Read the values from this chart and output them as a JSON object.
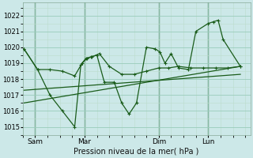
{
  "xlabel": "Pression niveau de la mer( hPa )",
  "background_color": "#cce8e8",
  "grid_color_major": "#99ccbb",
  "grid_color_minor": "#bbddcc",
  "line_color": "#1a5c1a",
  "ylim": [
    1014.5,
    1022.8
  ],
  "yticks": [
    1015,
    1016,
    1017,
    1018,
    1019,
    1020,
    1021,
    1022
  ],
  "x_tick_labels": [
    "Sam",
    "Mar",
    "Dim",
    "Lun"
  ],
  "x_tick_positions": [
    0.5,
    2.5,
    5.5,
    7.5
  ],
  "x_vlines": [
    0.5,
    2.5,
    5.5,
    7.5
  ],
  "xlim": [
    0,
    9.2
  ],
  "line1_x": [
    0.05,
    0.6,
    1.1,
    1.6,
    2.1,
    2.4,
    2.6,
    2.8,
    3.1,
    3.5,
    4.0,
    4.5,
    5.0,
    5.5,
    5.9,
    6.3,
    6.8,
    7.3,
    7.8,
    8.3,
    8.8
  ],
  "line1_y": [
    1019.9,
    1018.6,
    1018.6,
    1018.5,
    1018.2,
    1019.0,
    1019.3,
    1019.4,
    1019.6,
    1018.8,
    1018.3,
    1018.3,
    1018.5,
    1018.7,
    1018.7,
    1018.8,
    1018.7,
    1018.7,
    1018.7,
    1018.7,
    1018.8
  ],
  "line2_x": [
    0.05,
    0.6,
    1.1,
    1.6,
    2.1,
    2.35,
    2.55,
    2.75,
    3.0,
    3.3,
    3.7,
    4.0,
    4.3,
    4.6,
    5.0,
    5.35,
    5.55,
    5.75,
    6.0,
    6.3,
    6.7,
    7.0,
    7.5,
    7.7,
    7.9,
    8.1,
    8.8
  ],
  "line2_y": [
    1019.9,
    1018.6,
    1017.0,
    1016.0,
    1015.0,
    1018.9,
    1019.3,
    1019.4,
    1019.5,
    1017.8,
    1017.8,
    1016.5,
    1015.8,
    1016.5,
    1020.0,
    1019.9,
    1019.7,
    1019.0,
    1019.6,
    1018.7,
    1018.6,
    1021.0,
    1021.5,
    1021.6,
    1021.7,
    1020.5,
    1018.8
  ],
  "trend_x": [
    0.05,
    8.8
  ],
  "trend_y": [
    1016.5,
    1018.8
  ],
  "trend2_x": [
    0.05,
    8.8
  ],
  "trend2_y": [
    1017.3,
    1018.3
  ]
}
